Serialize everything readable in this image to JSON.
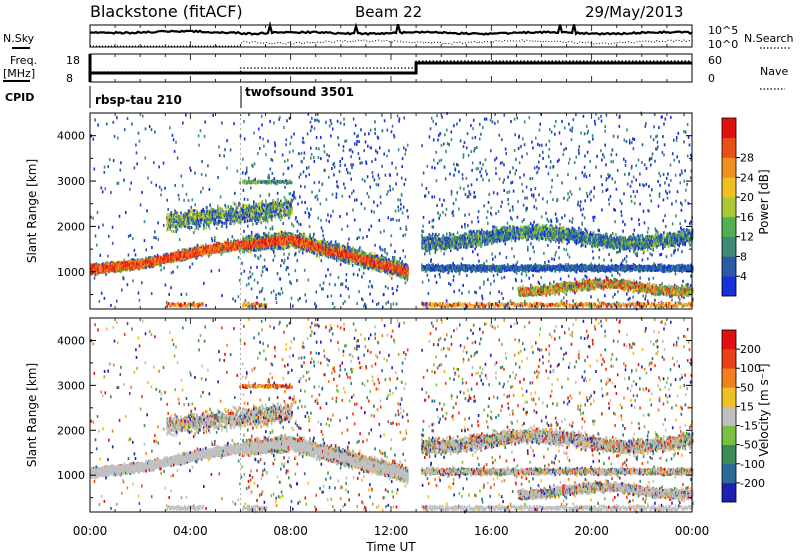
{
  "header": {
    "radar": "Blackstone (fitACF)",
    "beam": "Beam 22",
    "date": "29/May/2013"
  },
  "strips": {
    "nsky_label": "N.Sky",
    "nsearch_label": "N.Search",
    "noise_ticks": [
      "10^5",
      "10^0"
    ],
    "freq_label_1": "Freq.",
    "freq_label_2": "[MHz]",
    "freq_ticks": [
      "18",
      "8"
    ],
    "nave_label": "Nave",
    "nave_ticks": [
      "60",
      "0"
    ],
    "cpid_label": "CPID",
    "cpid_segments": [
      {
        "name": "rbsp-tau 210",
        "start_hour": 0,
        "end_hour": 6
      },
      {
        "name": "twofsound 3501",
        "start_hour": 6,
        "end_hour": 24
      }
    ]
  },
  "chart_data": [
    {
      "type": "heatmap",
      "name": "power",
      "x_range_hours": [
        0,
        24
      ],
      "ylim": [
        180,
        4500
      ],
      "ylabel": "Slant Range [km]",
      "yticks": [
        "1000",
        "2000",
        "3000",
        "4000"
      ],
      "colorbar_label": "Power [dB]",
      "colorbar_ticks": [
        "4",
        "8",
        "12",
        "16",
        "20",
        "24",
        "28"
      ],
      "colorbar_colors": [
        "#1830d8",
        "#2c5aa8",
        "#3d8a78",
        "#52b050",
        "#a8c838",
        "#f0c020",
        "#f09020",
        "#e85018",
        "#e01010"
      ]
    },
    {
      "type": "heatmap",
      "name": "velocity",
      "x_range_hours": [
        0,
        24
      ],
      "ylim": [
        180,
        4500
      ],
      "ylabel": "Slant Range [km]",
      "yticks": [
        "1000",
        "2000",
        "3000",
        "4000"
      ],
      "colorbar_label": "Velocity [m s⁻¹]",
      "colorbar_ticks": [
        "200",
        "100",
        "50",
        "15",
        "-15",
        "-50",
        "-100",
        "-200"
      ],
      "colorbar_colors": [
        "#2020b0",
        "#2a6a9a",
        "#3a8a5a",
        "#78c040",
        "#c0c0c0",
        "#f0c020",
        "#f08020",
        "#e84018",
        "#e01010"
      ],
      "xticks": [
        "00:00",
        "04:00",
        "08:00",
        "12:00",
        "16:00",
        "20:00",
        "00:00"
      ],
      "xlabel": "Time UT"
    }
  ]
}
